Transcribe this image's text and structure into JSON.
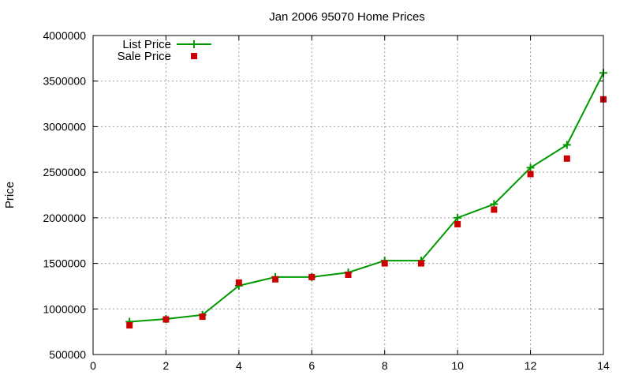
{
  "chart_data": {
    "type": "line",
    "title": "Jan 2006 95070 Home Prices",
    "xlabel": "",
    "ylabel": "Price",
    "xlim": [
      0,
      14
    ],
    "ylim": [
      500000,
      4000000
    ],
    "x_ticks": [
      0,
      2,
      4,
      6,
      8,
      10,
      12,
      14
    ],
    "y_ticks": [
      500000,
      1000000,
      1500000,
      2000000,
      2500000,
      3000000,
      3500000,
      4000000
    ],
    "x_tick_labels": [
      "0",
      "2",
      "4",
      "6",
      "8",
      "10",
      "12",
      "14"
    ],
    "y_tick_labels": [
      "500000",
      "1000000",
      "1500000",
      "2000000",
      "2500000",
      "3000000",
      "3500000",
      "4000000"
    ],
    "grid": true,
    "legend_position": "top-left",
    "x": [
      1,
      2,
      3,
      4,
      5,
      6,
      7,
      8,
      9,
      10,
      11,
      12,
      13,
      14
    ],
    "series": [
      {
        "name": "List Price",
        "style": "linespoints",
        "marker": "plus",
        "color": "#009900",
        "values": [
          860000,
          890000,
          935000,
          1255000,
          1350000,
          1350000,
          1400000,
          1530000,
          1530000,
          2000000,
          2150000,
          2550000,
          2800000,
          3590000
        ]
      },
      {
        "name": "Sale Price",
        "style": "points",
        "marker": "square",
        "color": "#cc0000",
        "values": [
          820000,
          885000,
          915000,
          1290000,
          1325000,
          1350000,
          1375000,
          1500000,
          1500000,
          1930000,
          2090000,
          2480000,
          2650000,
          3300000
        ]
      }
    ]
  }
}
